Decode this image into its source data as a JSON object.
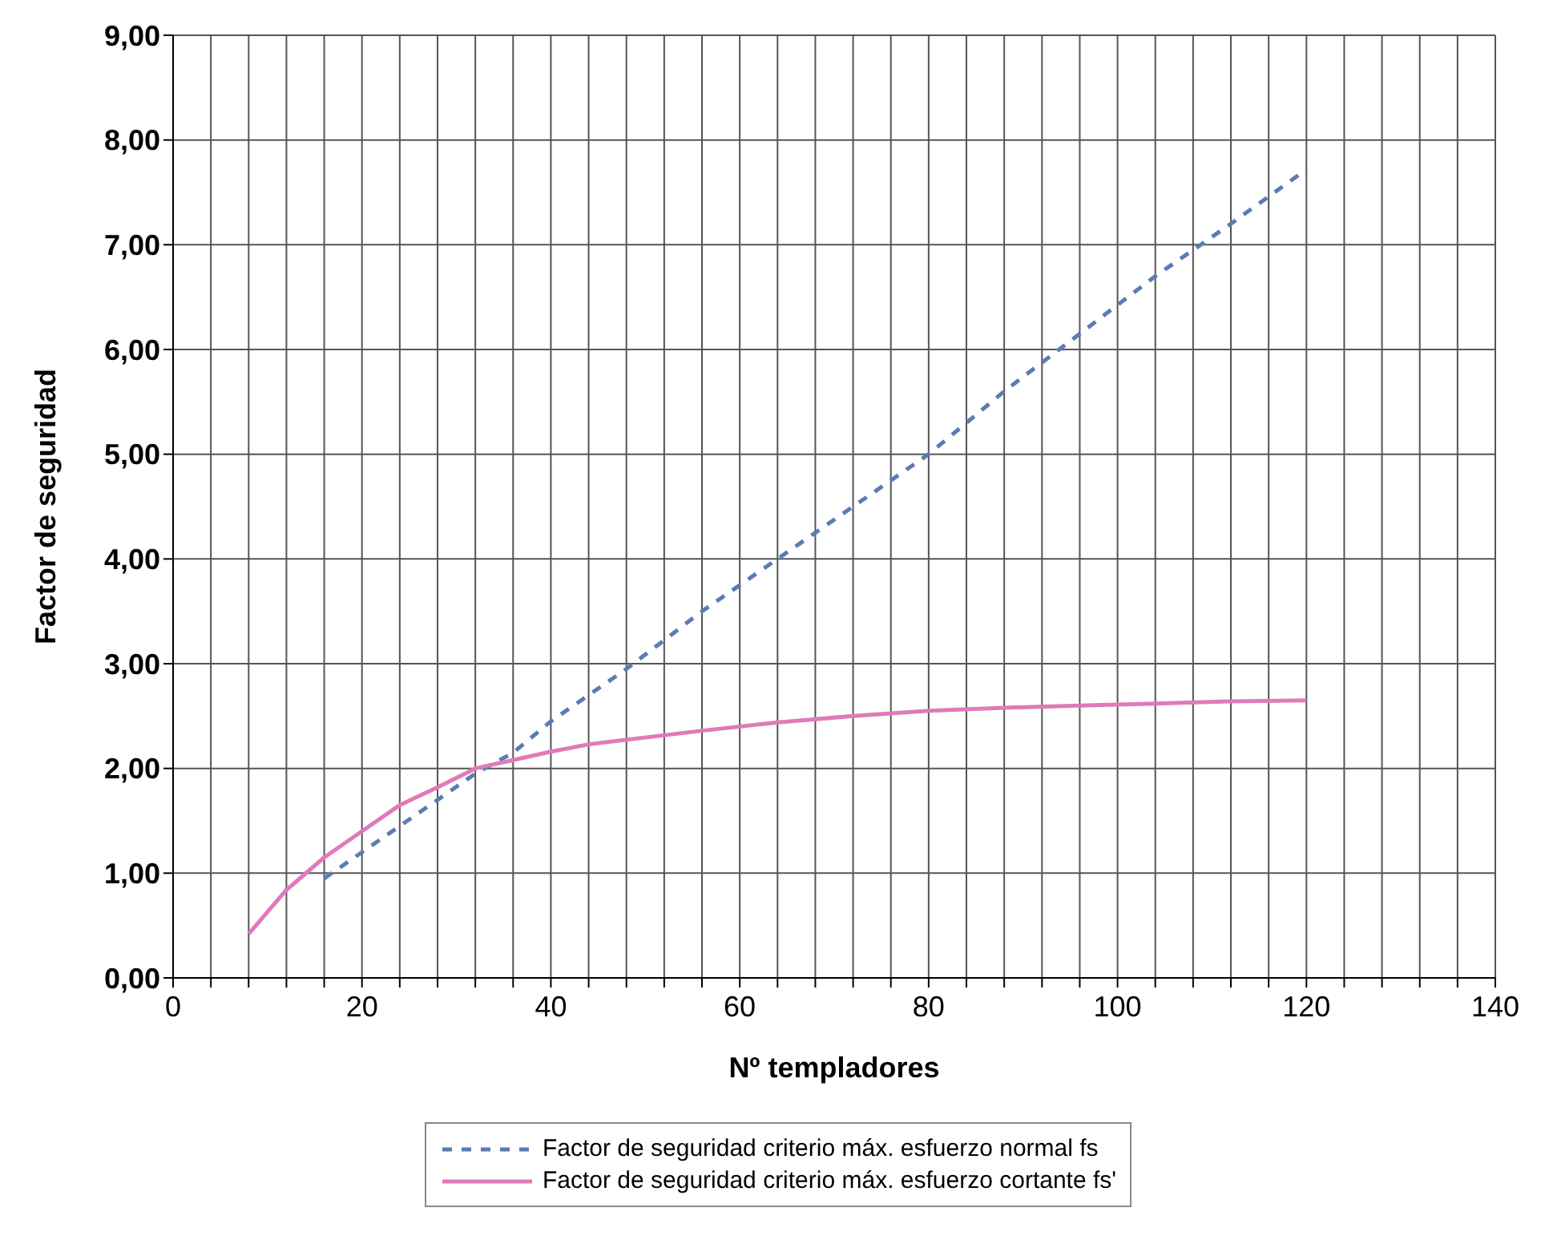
{
  "chart_data": {
    "type": "line",
    "xlabel": "Nº templadores",
    "ylabel": "Factor de seguridad",
    "xlim": [
      0,
      140
    ],
    "ylim": [
      0,
      9
    ],
    "xticks": [
      0,
      {
        "value": 4,
        "label": null
      },
      {
        "value": 8,
        "label": null
      },
      {
        "value": 12,
        "label": null
      },
      {
        "value": 16,
        "label": null
      },
      20,
      {
        "value": 24,
        "label": null
      },
      {
        "value": 28,
        "label": null
      },
      {
        "value": 32,
        "label": null
      },
      {
        "value": 36,
        "label": null
      },
      40,
      {
        "value": 44,
        "label": null
      },
      {
        "value": 48,
        "label": null
      },
      {
        "value": 52,
        "label": null
      },
      {
        "value": 56,
        "label": null
      },
      60,
      {
        "value": 64,
        "label": null
      },
      {
        "value": 68,
        "label": null
      },
      {
        "value": 72,
        "label": null
      },
      {
        "value": 76,
        "label": null
      },
      80,
      {
        "value": 84,
        "label": null
      },
      {
        "value": 88,
        "label": null
      },
      {
        "value": 92,
        "label": null
      },
      {
        "value": 96,
        "label": null
      },
      100,
      {
        "value": 104,
        "label": null
      },
      {
        "value": 108,
        "label": null
      },
      {
        "value": 112,
        "label": null
      },
      {
        "value": 116,
        "label": null
      },
      120,
      {
        "value": 124,
        "label": null
      },
      {
        "value": 128,
        "label": null
      },
      {
        "value": 132,
        "label": null
      },
      {
        "value": 136,
        "label": null
      },
      140
    ],
    "yticks": [
      {
        "value": 0,
        "label": "0,00"
      },
      {
        "value": 1,
        "label": "1,00"
      },
      {
        "value": 2,
        "label": "2,00"
      },
      {
        "value": 3,
        "label": "3,00"
      },
      {
        "value": 4,
        "label": "4,00"
      },
      {
        "value": 5,
        "label": "5,00"
      },
      {
        "value": 6,
        "label": "6,00"
      },
      {
        "value": 7,
        "label": "7,00"
      },
      {
        "value": 8,
        "label": "8,00"
      },
      {
        "value": 9,
        "label": "9,00"
      }
    ],
    "grid": true,
    "legend": "bottom",
    "marker": "none",
    "series": [
      {
        "name": "Factor de seguridad criterio máx. esfuerzo normal fs",
        "color": "#5b7bb5",
        "line_style": "dashed",
        "x": [
          16,
          20,
          24,
          28,
          32,
          36,
          40,
          48,
          56,
          64,
          72,
          80,
          88,
          96,
          104,
          112,
          120
        ],
        "values": [
          0.95,
          1.2,
          1.45,
          1.7,
          1.95,
          2.15,
          2.45,
          2.95,
          3.5,
          4.0,
          4.5,
          5.0,
          5.6,
          6.15,
          6.7,
          7.2,
          7.72
        ]
      },
      {
        "name": "Factor de seguridad criterio máx. esfuerzo cortante fs'",
        "color": "#e07ab8",
        "line_style": "solid",
        "x": [
          8,
          12,
          16,
          20,
          24,
          28,
          32,
          36,
          40,
          44,
          56,
          64,
          72,
          80,
          88,
          96,
          104,
          112,
          120
        ],
        "values": [
          0.42,
          0.84,
          1.15,
          1.4,
          1.65,
          1.82,
          2.0,
          2.08,
          2.16,
          2.23,
          2.36,
          2.44,
          2.5,
          2.55,
          2.58,
          2.6,
          2.62,
          2.64,
          2.65
        ]
      }
    ]
  }
}
